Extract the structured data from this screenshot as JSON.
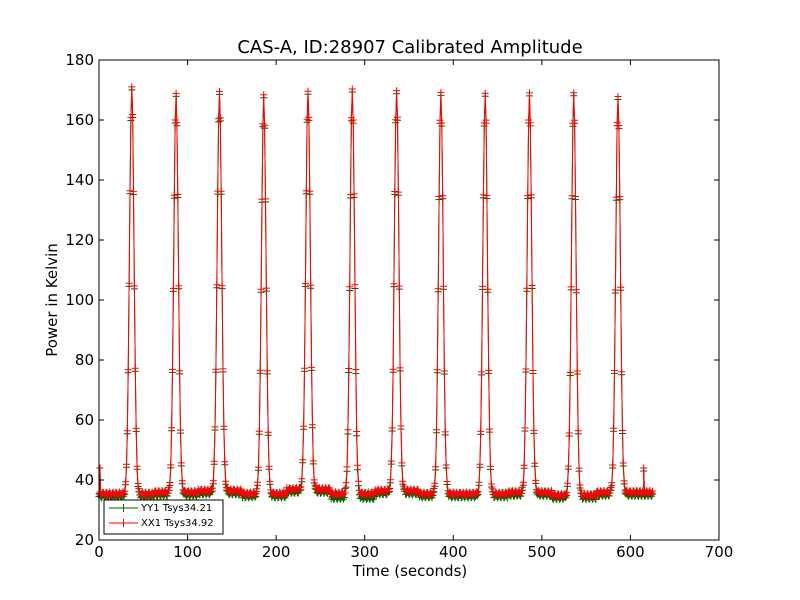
{
  "chart_data": {
    "type": "line",
    "title": "CAS-A, ID:28907 Calibrated Amplitude",
    "xlabel": "Time (seconds)",
    "ylabel": "Power in Kelvin",
    "xlim": [
      0,
      700
    ],
    "ylim": [
      20,
      180
    ],
    "xticks": [
      0,
      100,
      200,
      300,
      400,
      500,
      600,
      700
    ],
    "yticks": [
      20,
      40,
      60,
      80,
      100,
      120,
      140,
      160,
      180
    ],
    "grid": false,
    "legend_position": "lower-left",
    "marker": "+",
    "peaks": {
      "center_seconds": [
        37,
        87,
        136,
        186,
        236,
        286,
        336,
        386,
        436,
        486,
        536,
        586
      ],
      "peak_kelvin": [
        171,
        169,
        170,
        168,
        170,
        170,
        170,
        169,
        169,
        169,
        169,
        168
      ]
    },
    "baselines": {
      "segment_ends_seconds": [
        0,
        62,
        112,
        162,
        212,
        262,
        312,
        362,
        412,
        462,
        512,
        562,
        620
      ],
      "xx1_kelvin": [
        35.5,
        36,
        36.5,
        35.5,
        37,
        35.5,
        36.5,
        35.5,
        35.5,
        36,
        35,
        36
      ],
      "yy1_kelvin": [
        34.5,
        35,
        35.5,
        34.5,
        36,
        34,
        35.5,
        34.5,
        34.5,
        35,
        34,
        35
      ],
      "spikes": [
        {
          "x": 1,
          "xx1": 44,
          "yy1": 44
        },
        {
          "x": 615,
          "xx1": 44,
          "yy1": 43
        }
      ]
    },
    "series": [
      {
        "name": "YY1 Tsys34.21",
        "color": "#006400"
      },
      {
        "name": "XX1 Tsys34.92",
        "color": "#ff0000"
      }
    ]
  }
}
